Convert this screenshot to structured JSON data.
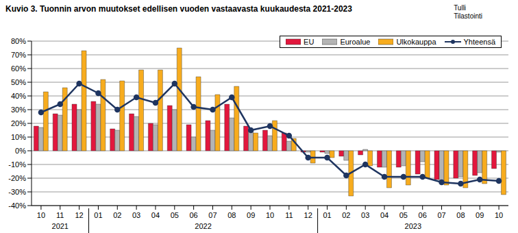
{
  "chart_data": {
    "type": "bar",
    "title": "Kuvio 3. Tuonnin arvon muutokset edellisen vuoden vastaavasta kuukaudesta 2021-2023",
    "source": [
      "Tulli",
      "Tilastointi"
    ],
    "categories": [
      "10",
      "11",
      "12",
      "01",
      "02",
      "03",
      "04",
      "05",
      "06",
      "07",
      "08",
      "09",
      "10",
      "11",
      "12",
      "01",
      "02",
      "03",
      "04",
      "05",
      "06",
      "07",
      "08",
      "09",
      "10"
    ],
    "years": [
      "2021",
      "2021",
      "2021",
      "2022",
      "2022",
      "2022",
      "2022",
      "2022",
      "2022",
      "2022",
      "2022",
      "2022",
      "2022",
      "2022",
      "2022",
      "2023",
      "2023",
      "2023",
      "2023",
      "2023",
      "2023",
      "2023",
      "2023",
      "2023",
      "2023"
    ],
    "series": [
      {
        "name": "EU",
        "type": "bar",
        "color": "#E2173D",
        "values": [
          18,
          27,
          34,
          36,
          16,
          27,
          20,
          33,
          19,
          22,
          34,
          18,
          15,
          13,
          -1,
          -1,
          -4,
          -3,
          -12,
          -12,
          -17,
          -21,
          -20,
          -18,
          -13
        ]
      },
      {
        "name": "Euroalue",
        "type": "bar",
        "color": "#B4B4B4",
        "values": [
          17,
          26,
          30,
          34,
          15,
          25,
          19,
          30,
          10,
          15,
          24,
          14,
          11,
          7,
          -1,
          -2,
          -7,
          1,
          -12,
          -11,
          -8,
          -22,
          -19,
          -16,
          -1
        ]
      },
      {
        "name": "Ulkokauppa",
        "type": "bar",
        "color": "#F7AC1E",
        "values": [
          43,
          46,
          73,
          52,
          51,
          59,
          59,
          75,
          54,
          41,
          47,
          13,
          22,
          9,
          -9,
          -5,
          -33,
          -11,
          -27,
          -25,
          -20,
          -25,
          -27,
          -24,
          -32
        ]
      },
      {
        "name": "Yhteensä",
        "type": "line",
        "color": "#1F3560",
        "marker": "circle",
        "values": [
          28,
          34,
          49,
          42,
          30,
          39,
          35,
          49,
          32,
          30,
          39,
          15,
          18,
          11,
          -5,
          -5,
          -18,
          -10,
          -19,
          -19,
          -19,
          -23,
          -24,
          -21,
          -22
        ]
      }
    ],
    "ylim": [
      -40,
      80
    ],
    "yticks": [
      {
        "value": -40,
        "label": "-40%"
      },
      {
        "value": -30,
        "label": "-30%"
      },
      {
        "value": -20,
        "label": "-20%"
      },
      {
        "value": -10,
        "label": "-10%"
      },
      {
        "value": 0,
        "label": "0%"
      },
      {
        "value": 10,
        "label": "10%"
      },
      {
        "value": 20,
        "label": "20%"
      },
      {
        "value": 30,
        "label": "30%"
      },
      {
        "value": 40,
        "label": "40%"
      },
      {
        "value": 50,
        "label": "50%"
      },
      {
        "value": 60,
        "label": "60%"
      },
      {
        "value": 70,
        "label": "70%"
      },
      {
        "value": 80,
        "label": "80%"
      }
    ],
    "grid": true,
    "legend": "upper right"
  }
}
